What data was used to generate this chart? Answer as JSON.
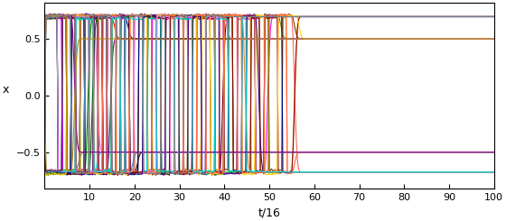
{
  "title": "",
  "xlabel": "t/16",
  "ylabel": "x",
  "xlim": [
    0,
    100
  ],
  "ylim": [
    -0.82,
    0.82
  ],
  "xticks": [
    10,
    20,
    30,
    40,
    50,
    60,
    70,
    80,
    90,
    100
  ],
  "yticks": [
    -0.5,
    0,
    0.5
  ],
  "bg_color": "#ffffff",
  "figsize": [
    5.6,
    2.45
  ],
  "dpi": 100,
  "num_lines": 30,
  "seed": 12345,
  "stable_levels": [
    0.695,
    0.5,
    -0.5,
    -0.675
  ],
  "line_colors": [
    "blue",
    "red",
    "green",
    "cyan",
    "magenta",
    "black",
    "#ffaa00",
    "#800080",
    "#804000",
    "#ff69b4",
    "#808080",
    "#808000",
    "#000080",
    "#008080",
    "#00ff00",
    "#800000",
    "#ff6666",
    "#00008b",
    "#006400",
    "#8b0000",
    "#ffd700",
    "#4b0082",
    "#ee82ee",
    "#cd853f",
    "#4682b4",
    "#ff6347",
    "#00ced1",
    "#8b008b",
    "#b8860b",
    "#708090"
  ]
}
